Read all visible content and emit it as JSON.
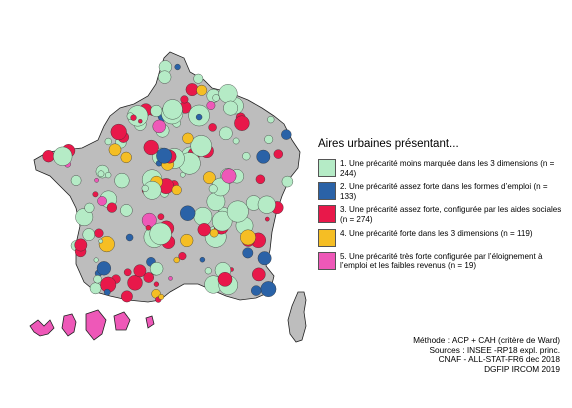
{
  "legend": {
    "title": "Aires urbaines présentant...",
    "items": [
      {
        "label": "1. Une précarité moins marquée dans les 3 dimensions (n = 244)",
        "color": "#b5ebc6"
      },
      {
        "label": "2. Une précarité assez forte dans les formes d’emploi (n = 133)",
        "color": "#2a62a7"
      },
      {
        "label": "3. Une précarité assez forte, configurée par les aides sociales (n = 274)",
        "color": "#e8184a"
      },
      {
        "label": "4. Une précarité forte dans les 3 dimensions (n = 119)",
        "color": "#f5be24"
      },
      {
        "label": "5. Une précarité très forte configurée par l’éloignement à l’emploi et les faibles revenus (n = 19)",
        "color": "#ee58b8"
      }
    ]
  },
  "sources": [
    "Méthode : ACP + CAH (critère de Ward)",
    "Sources : INSEE -RP18 expl. princ.",
    "CNAF - ALL-STAT-FR6 dec 2018",
    "DGFIP IRCOM 2019"
  ],
  "map_colors": {
    "background_territory": "#bdbdbd",
    "outline": "#222222"
  }
}
